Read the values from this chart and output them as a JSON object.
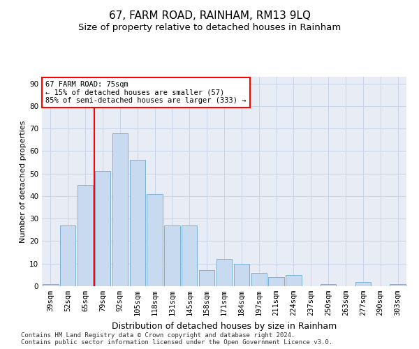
{
  "title": "67, FARM ROAD, RAINHAM, RM13 9LQ",
  "subtitle": "Size of property relative to detached houses in Rainham",
  "xlabel": "Distribution of detached houses by size in Rainham",
  "ylabel": "Number of detached properties",
  "categories": [
    "39sqm",
    "52sqm",
    "65sqm",
    "79sqm",
    "92sqm",
    "105sqm",
    "118sqm",
    "131sqm",
    "145sqm",
    "158sqm",
    "171sqm",
    "184sqm",
    "197sqm",
    "211sqm",
    "224sqm",
    "237sqm",
    "250sqm",
    "263sqm",
    "277sqm",
    "290sqm",
    "303sqm"
  ],
  "values": [
    1,
    27,
    45,
    51,
    68,
    56,
    41,
    27,
    27,
    7,
    12,
    10,
    6,
    4,
    5,
    0,
    1,
    0,
    2,
    0,
    1
  ],
  "bar_color": "#c8daf0",
  "bar_edge_color": "#7ab0d8",
  "vline_x_index": 3,
  "vline_color": "red",
  "annotation_text": "67 FARM ROAD: 75sqm\n← 15% of detached houses are smaller (57)\n85% of semi-detached houses are larger (333) →",
  "annotation_box_color": "white",
  "annotation_box_edge": "red",
  "ylim": [
    0,
    93
  ],
  "yticks": [
    0,
    10,
    20,
    30,
    40,
    50,
    60,
    70,
    80,
    90
  ],
  "grid_color": "#c8d4e8",
  "bg_color": "#e8edf5",
  "footer": "Contains HM Land Registry data © Crown copyright and database right 2024.\nContains public sector information licensed under the Open Government Licence v3.0.",
  "title_fontsize": 11,
  "subtitle_fontsize": 9.5,
  "xlabel_fontsize": 9,
  "ylabel_fontsize": 8,
  "tick_fontsize": 7.5,
  "annotation_fontsize": 7.5,
  "footer_fontsize": 6.5
}
